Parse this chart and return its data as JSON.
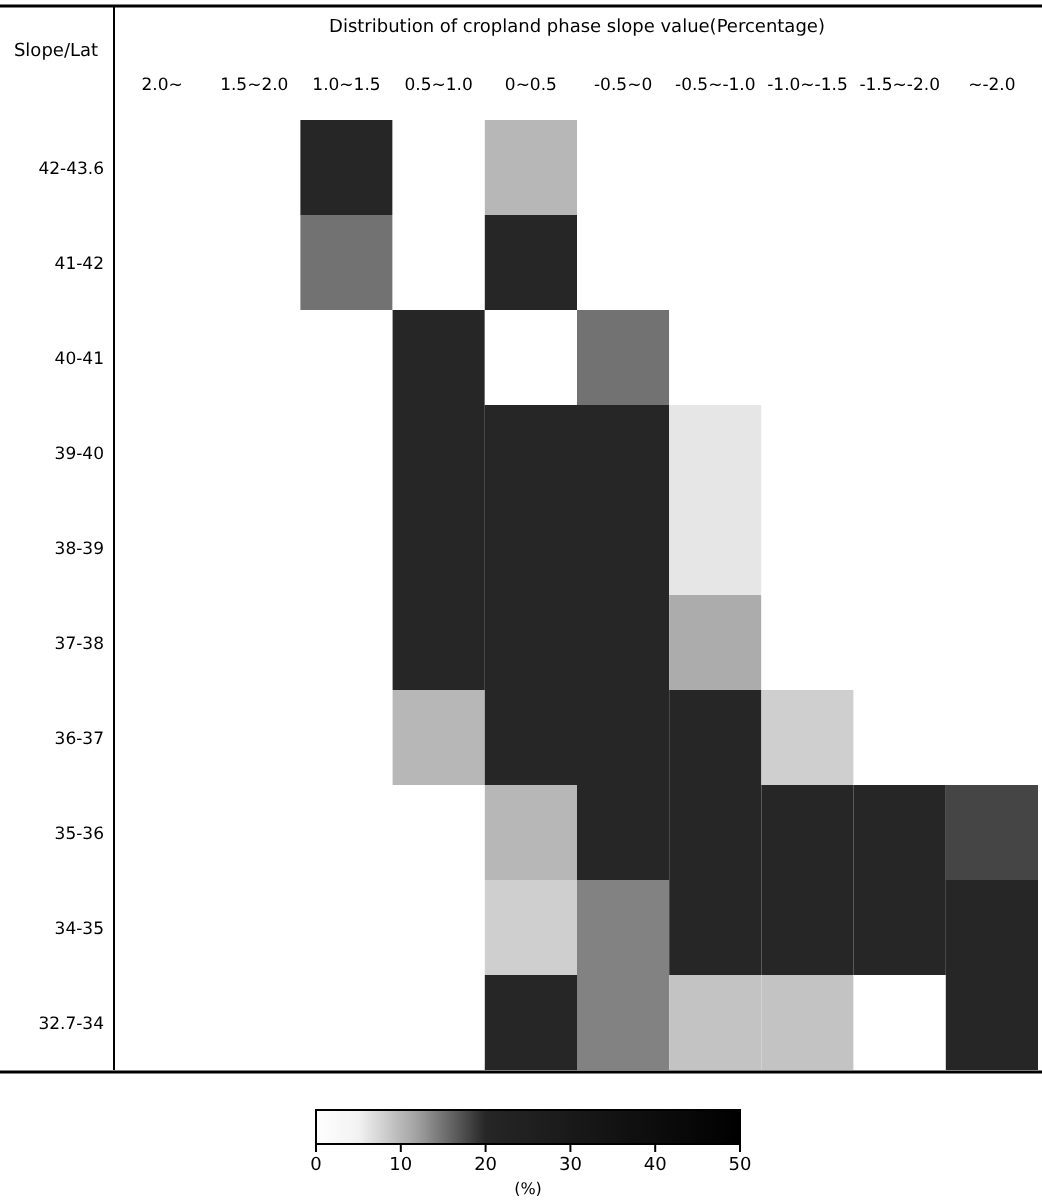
{
  "chart_data": {
    "type": "heatmap",
    "title": "Distribution of cropland phase slope value(Percentage)",
    "ylabel": "Slope/Lat",
    "clabel": "(%)",
    "categories": [
      "2.0~",
      "1.5~2.0",
      "1.0~1.5",
      "0.5~1.0",
      "0~0.5",
      "-0.5~0",
      "-0.5~-1.0",
      "-1.0~-1.5",
      "-1.5~-2.0",
      "~-2.0"
    ],
    "y_categories": [
      "42-43.6",
      "41-42",
      "40-41",
      "39-40",
      "38-39",
      "37-38",
      "36-37",
      "35-36",
      "34-35",
      "32.7-34"
    ],
    "cells": [
      [
        0,
        0,
        20,
        0,
        10,
        0,
        0,
        0,
        0,
        0
      ],
      [
        0,
        0,
        15,
        0,
        20,
        0,
        0,
        0,
        0,
        0
      ],
      [
        0,
        0,
        0,
        20,
        0,
        15,
        0,
        0,
        0,
        0
      ],
      [
        0,
        0,
        0,
        20,
        20,
        20,
        6,
        0,
        0,
        0
      ],
      [
        0,
        0,
        0,
        20,
        20,
        20,
        6,
        0,
        0,
        0
      ],
      [
        0,
        0,
        0,
        20,
        20,
        20,
        11,
        0,
        0,
        0
      ],
      [
        0,
        0,
        0,
        10,
        20,
        20,
        20,
        8,
        0,
        0
      ],
      [
        0,
        0,
        0,
        0,
        10,
        20,
        20,
        20,
        20,
        18
      ],
      [
        0,
        0,
        0,
        0,
        8,
        14,
        20,
        20,
        20,
        20
      ],
      [
        0,
        0,
        0,
        0,
        20,
        14,
        9,
        9,
        0,
        20
      ]
    ],
    "clim": [
      0,
      50
    ],
    "cticks": [
      0,
      10,
      20,
      30,
      40,
      50
    ]
  }
}
